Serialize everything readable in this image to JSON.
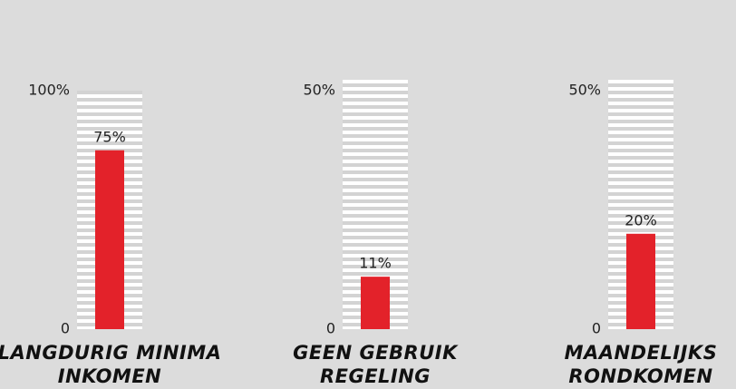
{
  "chart_data": [
    {
      "type": "bar",
      "title": "LANGDURIG MINIMA INKOMEN",
      "values": [
        75
      ],
      "value_labels": [
        "75%"
      ],
      "color": "#e3222a",
      "ylim": [
        0,
        100
      ],
      "yticks": [
        0,
        {
          "value": 100,
          "label": "100%"
        }
      ]
    },
    {
      "type": "bar",
      "title": "GEEN GEBRUIK REGELING",
      "values": [
        11
      ],
      "value_labels": [
        "11%"
      ],
      "color": "#e3222a",
      "ylim": [
        0,
        50
      ],
      "yticks": [
        0,
        {
          "value": 50,
          "label": "50%"
        }
      ]
    },
    {
      "type": "bar",
      "title": "MAANDELIJKS RONDKOMEN",
      "values": [
        20
      ],
      "value_labels": [
        "20%"
      ],
      "color": "#e3222a",
      "ylim": [
        0,
        50
      ],
      "yticks": [
        0,
        {
          "value": 50,
          "label": "50%"
        }
      ]
    }
  ]
}
